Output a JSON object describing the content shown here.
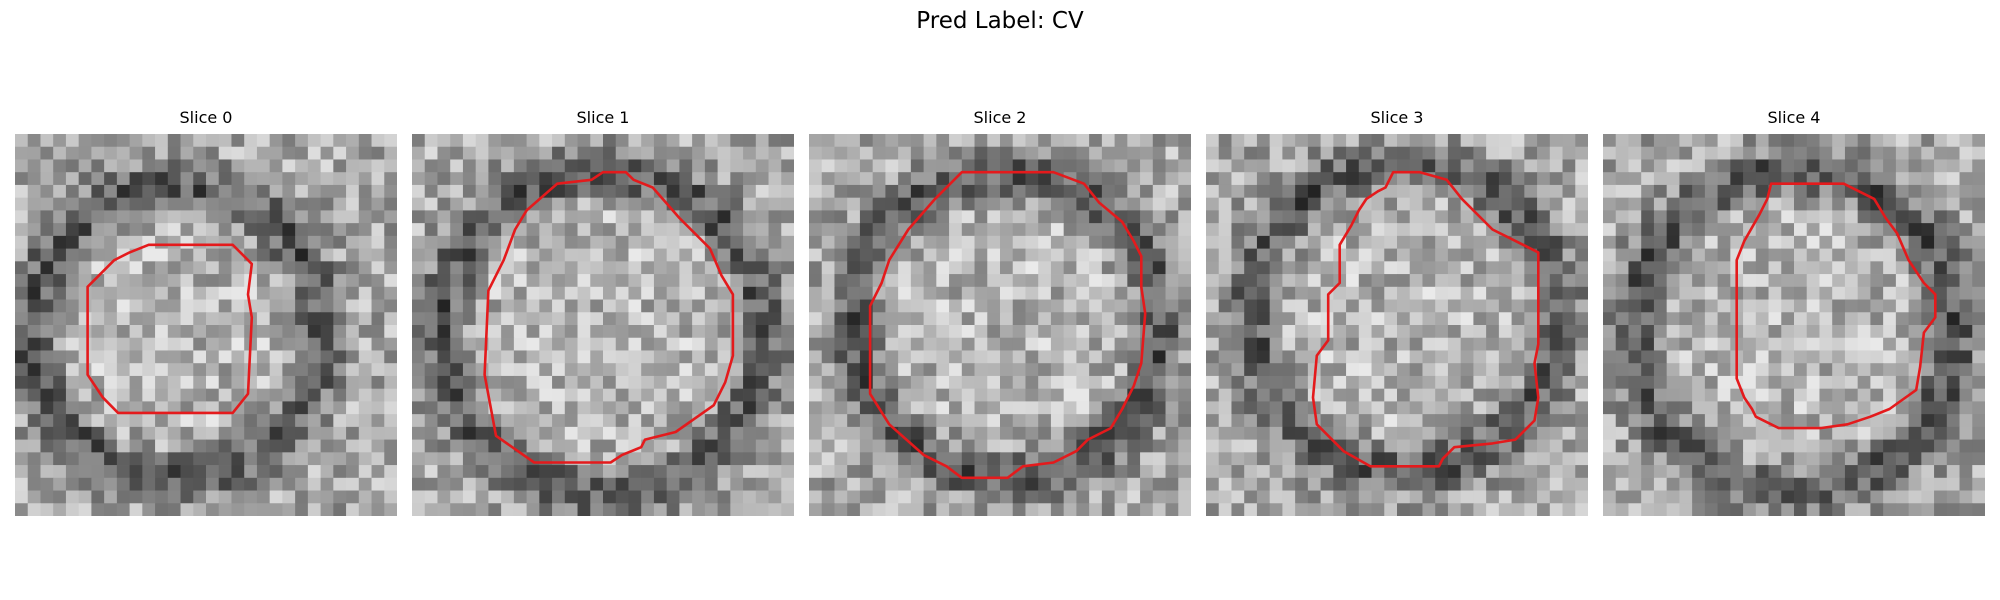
{
  "figure": {
    "title": "Pred Label: CV"
  },
  "colors": {
    "outline": "#e41a1c",
    "background": "#ffffff"
  },
  "grid_cells": 30,
  "panels": [
    {
      "title": "Slice 0",
      "ring_radius": 0.38,
      "ring_center": [
        0.42,
        0.52
      ],
      "contour": [
        [
          0.35,
          0.29
        ],
        [
          0.57,
          0.29
        ],
        [
          0.62,
          0.34
        ],
        [
          0.61,
          0.42
        ],
        [
          0.62,
          0.48
        ],
        [
          0.61,
          0.68
        ],
        [
          0.57,
          0.73
        ],
        [
          0.27,
          0.73
        ],
        [
          0.23,
          0.69
        ],
        [
          0.19,
          0.63
        ],
        [
          0.19,
          0.4
        ],
        [
          0.26,
          0.33
        ],
        [
          0.3,
          0.31
        ]
      ]
    },
    {
      "title": "Slice 1",
      "ring_radius": 0.42,
      "ring_center": [
        0.5,
        0.52
      ],
      "contour": [
        [
          0.5,
          0.1
        ],
        [
          0.56,
          0.1
        ],
        [
          0.58,
          0.12
        ],
        [
          0.63,
          0.14
        ],
        [
          0.7,
          0.22
        ],
        [
          0.78,
          0.3
        ],
        [
          0.81,
          0.37
        ],
        [
          0.84,
          0.42
        ],
        [
          0.84,
          0.58
        ],
        [
          0.82,
          0.65
        ],
        [
          0.79,
          0.71
        ],
        [
          0.69,
          0.78
        ],
        [
          0.61,
          0.8
        ],
        [
          0.6,
          0.82
        ],
        [
          0.55,
          0.84
        ],
        [
          0.52,
          0.86
        ],
        [
          0.32,
          0.86
        ],
        [
          0.22,
          0.79
        ],
        [
          0.19,
          0.63
        ],
        [
          0.2,
          0.41
        ],
        [
          0.24,
          0.33
        ],
        [
          0.27,
          0.25
        ],
        [
          0.3,
          0.2
        ],
        [
          0.38,
          0.13
        ],
        [
          0.47,
          0.12
        ]
      ]
    },
    {
      "title": "Slice 2",
      "ring_radius": 0.4,
      "ring_center": [
        0.52,
        0.5
      ],
      "contour": [
        [
          0.4,
          0.1
        ],
        [
          0.64,
          0.1
        ],
        [
          0.72,
          0.13
        ],
        [
          0.76,
          0.18
        ],
        [
          0.82,
          0.23
        ],
        [
          0.85,
          0.28
        ],
        [
          0.87,
          0.32
        ],
        [
          0.87,
          0.4
        ],
        [
          0.88,
          0.47
        ],
        [
          0.87,
          0.6
        ],
        [
          0.85,
          0.66
        ],
        [
          0.82,
          0.72
        ],
        [
          0.79,
          0.77
        ],
        [
          0.73,
          0.8
        ],
        [
          0.7,
          0.83
        ],
        [
          0.64,
          0.86
        ],
        [
          0.56,
          0.87
        ],
        [
          0.52,
          0.9
        ],
        [
          0.4,
          0.9
        ],
        [
          0.36,
          0.87
        ],
        [
          0.3,
          0.84
        ],
        [
          0.21,
          0.76
        ],
        [
          0.16,
          0.68
        ],
        [
          0.16,
          0.45
        ],
        [
          0.19,
          0.39
        ],
        [
          0.21,
          0.33
        ],
        [
          0.26,
          0.25
        ],
        [
          0.33,
          0.17
        ]
      ]
    },
    {
      "title": "Slice 3",
      "ring_radius": 0.4,
      "ring_center": [
        0.52,
        0.48
      ],
      "contour": [
        [
          0.49,
          0.1
        ],
        [
          0.56,
          0.1
        ],
        [
          0.63,
          0.12
        ],
        [
          0.67,
          0.17
        ],
        [
          0.75,
          0.25
        ],
        [
          0.87,
          0.31
        ],
        [
          0.87,
          0.55
        ],
        [
          0.86,
          0.6
        ],
        [
          0.87,
          0.69
        ],
        [
          0.86,
          0.75
        ],
        [
          0.81,
          0.8
        ],
        [
          0.75,
          0.81
        ],
        [
          0.65,
          0.82
        ],
        [
          0.62,
          0.85
        ],
        [
          0.61,
          0.87
        ],
        [
          0.43,
          0.87
        ],
        [
          0.36,
          0.83
        ],
        [
          0.29,
          0.76
        ],
        [
          0.28,
          0.69
        ],
        [
          0.29,
          0.58
        ],
        [
          0.32,
          0.54
        ],
        [
          0.32,
          0.42
        ],
        [
          0.35,
          0.39
        ],
        [
          0.35,
          0.29
        ],
        [
          0.38,
          0.24
        ],
        [
          0.4,
          0.2
        ],
        [
          0.42,
          0.17
        ],
        [
          0.45,
          0.15
        ],
        [
          0.47,
          0.14
        ]
      ]
    },
    {
      "title": "Slice 4",
      "ring_radius": 0.42,
      "ring_center": [
        0.5,
        0.52
      ],
      "contour": [
        [
          0.44,
          0.13
        ],
        [
          0.63,
          0.13
        ],
        [
          0.71,
          0.17
        ],
        [
          0.74,
          0.22
        ],
        [
          0.77,
          0.26
        ],
        [
          0.8,
          0.33
        ],
        [
          0.84,
          0.39
        ],
        [
          0.87,
          0.42
        ],
        [
          0.87,
          0.48
        ],
        [
          0.84,
          0.52
        ],
        [
          0.83,
          0.61
        ],
        [
          0.82,
          0.67
        ],
        [
          0.75,
          0.72
        ],
        [
          0.7,
          0.74
        ],
        [
          0.64,
          0.76
        ],
        [
          0.57,
          0.77
        ],
        [
          0.46,
          0.77
        ],
        [
          0.4,
          0.74
        ],
        [
          0.39,
          0.72
        ],
        [
          0.37,
          0.69
        ],
        [
          0.35,
          0.64
        ],
        [
          0.35,
          0.33
        ],
        [
          0.37,
          0.28
        ],
        [
          0.41,
          0.21
        ],
        [
          0.43,
          0.17
        ]
      ]
    }
  ]
}
